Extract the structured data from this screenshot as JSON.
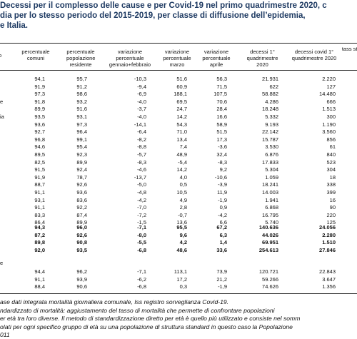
{
  "header": {
    "title_lines": [
      "Decessi per il complesso delle cause e per Covid-19 nel primo quadrimestre 2020, c",
      "dia per lo stesso periodo del 2015-2019, per classe di diffusione dell’epidemia,",
      "e Italia."
    ]
  },
  "table": {
    "columns": [
      "o",
      "percentuale comuni",
      "percentuale popolazione residente",
      "variazione percentuale gennaio+febbraio",
      "variazione percentuale marzo",
      "variazione percentuale aprile",
      "decessi 1° quadrimestre 2020",
      "decessi covid 1° quadrimestre 2020",
      "tass standa"
    ],
    "rows": [
      [
        null,
        "94,1",
        "95,7",
        "-10,3",
        "51,6",
        "56,3",
        "21.931",
        "2.220"
      ],
      [
        null,
        "91,9",
        "91,2",
        "-9,4",
        "60,9",
        "71,5",
        "622",
        "127"
      ],
      [
        null,
        "97,3",
        "98,6",
        "-6,9",
        "188,1",
        "107,5",
        "58.882",
        "14.480"
      ],
      [
        "e",
        "91,8",
        "93,2",
        "-4,0",
        "69,5",
        "70,6",
        "4.286",
        "666"
      ],
      [
        null,
        "89,9",
        "91,6",
        "-3,7",
        "24,7",
        "28,4",
        "18.248",
        "1.513"
      ],
      [
        "ia",
        "93,5",
        "93,1",
        "-4,0",
        "14,2",
        "16,6",
        "5.332",
        "300"
      ],
      [
        null,
        "93,6",
        "97,3",
        "-14,1",
        "54,3",
        "58,9",
        "9.193",
        "1.190"
      ],
      [
        null,
        "92,7",
        "96,4",
        "-6,4",
        "71,0",
        "51,5",
        "22.142",
        "3.560"
      ],
      [
        null,
        "96,8",
        "99,1",
        "-8,2",
        "13,4",
        "17,3",
        "15.787",
        "856"
      ],
      [
        null,
        "94,6",
        "95,4",
        "-8,8",
        "7,4",
        "-3,6",
        "3.530",
        "61"
      ],
      [
        null,
        "89,5",
        "92,3",
        "-5,7",
        "48,9",
        "32,4",
        "6.876",
        "840"
      ],
      [
        null,
        "82,5",
        "89,9",
        "-8,3",
        "-5,4",
        "-8,3",
        "17.833",
        "523"
      ],
      [
        null,
        "91,5",
        "92,4",
        "-4,6",
        "14,2",
        "9,2",
        "5.304",
        "304"
      ],
      [
        null,
        "91,9",
        "78,7",
        "-13,7",
        "4,0",
        "-10,6",
        "1.059",
        "18"
      ],
      [
        null,
        "88,7",
        "92,6",
        "-5,0",
        "0,5",
        "-3,9",
        "18.241",
        "338"
      ],
      [
        null,
        "91,1",
        "93,6",
        "-4,8",
        "10,5",
        "11,9",
        "14.003",
        "399"
      ],
      [
        null,
        "93,1",
        "83,6",
        "-4,2",
        "4,9",
        "-1,9",
        "1.941",
        "16"
      ],
      [
        null,
        "91,1",
        "92,2",
        "-7,0",
        "2,8",
        "0,9",
        "6.868",
        "90"
      ],
      [
        null,
        "83,3",
        "87,4",
        "-7,2",
        "-0,7",
        "-4,2",
        "16.795",
        "220"
      ],
      [
        null,
        "86,4",
        "89,9",
        "-1,5",
        "13,6",
        "6,6",
        "5.740",
        "125"
      ]
    ],
    "totals": [
      [
        null,
        "94,3",
        "96,0",
        "-7,1",
        "95,5",
        "67,2",
        "140.636",
        "24.056"
      ],
      [
        null,
        "87,2",
        "92,6",
        "-8,0",
        "9,6",
        "6,3",
        "44.026",
        "2.280"
      ],
      [
        null,
        "89,8",
        "90,8",
        "-5,5",
        "4,2",
        "1,4",
        "69.951",
        "1.510"
      ],
      [
        null,
        "92,0",
        "93,5",
        "-6,8",
        "48,6",
        "33,6",
        "254.613",
        "27.846"
      ]
    ],
    "section_label": "e",
    "section_rows": [
      [
        null,
        "94,4",
        "96,2",
        "-7,1",
        "113,1",
        "73,9",
        "120.721",
        "22.843"
      ],
      [
        null,
        "91,1",
        "93,9",
        "-6,2",
        "17,2",
        "21,2",
        "59.266",
        "3.647"
      ],
      [
        null,
        "88,4",
        "90,6",
        "-6,8",
        "0,3",
        "-1,9",
        "74.626",
        "1.356"
      ]
    ]
  },
  "notes": [
    "ase dati integrata mortalità giornaliera comunale, Iss registro sorveglianza Covid-19.",
    "ndardizzato di mortalità: aggiustamento del tasso di mortalità che permette di confrontare popolazioni",
    "er età tra loro diverse. Il metodo di standardizzazione diretto per età è quello più utilizzato e consiste nel somm",
    "olati per ogni specifico gruppo di età su una popolazione di struttura standard in questo caso la Popolazione",
    "011"
  ]
}
